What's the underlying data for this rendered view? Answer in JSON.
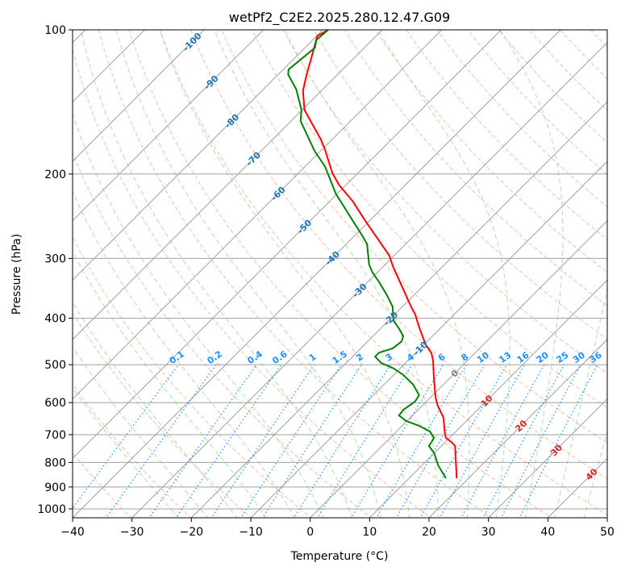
{
  "chart_data": {
    "type": "line",
    "subtype": "skew-T log-P diagram",
    "title": "wetPf2_C2E2.2025.280.12.47.G09",
    "xlabel": "Temperature (°C)",
    "ylabel": "Pressure (hPa)",
    "xlim": [
      -40,
      50
    ],
    "ylim": [
      1050,
      100
    ],
    "x_ticks": [
      -40,
      -30,
      -20,
      -10,
      0,
      10,
      20,
      30,
      40,
      50
    ],
    "y_ticks": [
      100,
      200,
      300,
      400,
      500,
      600,
      700,
      800,
      900,
      1000
    ],
    "grid": true,
    "series": [
      {
        "name": "Temperature",
        "color": "#ff0000",
        "points": [
          [
            863,
            18.0
          ],
          [
            739,
            12.3
          ],
          [
            725,
            11.0
          ],
          [
            711,
            9.4
          ],
          [
            684,
            7.8
          ],
          [
            645,
            5.6
          ],
          [
            609,
            2.6
          ],
          [
            586,
            0.9
          ],
          [
            536,
            -2.5
          ],
          [
            490,
            -5.8
          ],
          [
            473,
            -7.3
          ],
          [
            454,
            -9.7
          ],
          [
            425,
            -12.9
          ],
          [
            408,
            -14.8
          ],
          [
            393,
            -16.5
          ],
          [
            378,
            -18.6
          ],
          [
            311,
            -28.5
          ],
          [
            296,
            -30.8
          ],
          [
            250,
            -40.8
          ],
          [
            228,
            -46.1
          ],
          [
            211,
            -51.1
          ],
          [
            199,
            -54.3
          ],
          [
            177,
            -59.7
          ],
          [
            169,
            -62.0
          ],
          [
            147,
            -69.6
          ],
          [
            134,
            -73.1
          ],
          [
            124,
            -75.2
          ],
          [
            114,
            -77.3
          ],
          [
            108,
            -78.7
          ],
          [
            103,
            -79.9
          ],
          [
            100,
            -79.1
          ]
        ]
      },
      {
        "name": "Dewpoint",
        "color": "#008000",
        "points": [
          [
            863,
            16.2
          ],
          [
            811,
            12.7
          ],
          [
            765,
            10.0
          ],
          [
            739,
            7.9
          ],
          [
            711,
            7.4
          ],
          [
            689,
            5.6
          ],
          [
            671,
            2.9
          ],
          [
            655,
            -0.2
          ],
          [
            638,
            -2.3
          ],
          [
            621,
            -2.5
          ],
          [
            597,
            -1.9
          ],
          [
            579,
            -2.3
          ],
          [
            550,
            -5.1
          ],
          [
            525,
            -8.4
          ],
          [
            509,
            -11.1
          ],
          [
            496,
            -14.1
          ],
          [
            481,
            -16.2
          ],
          [
            472,
            -16.2
          ],
          [
            462,
            -14.6
          ],
          [
            447,
            -14.3
          ],
          [
            436,
            -14.9
          ],
          [
            421,
            -16.8
          ],
          [
            405,
            -19.1
          ],
          [
            378,
            -21.7
          ],
          [
            357,
            -24.7
          ],
          [
            336,
            -28.1
          ],
          [
            321,
            -30.8
          ],
          [
            309,
            -32.7
          ],
          [
            280,
            -36.5
          ],
          [
            270,
            -38.5
          ],
          [
            220,
            -50.2
          ],
          [
            193,
            -56.6
          ],
          [
            179,
            -61.0
          ],
          [
            155,
            -68.4
          ],
          [
            147,
            -70.1
          ],
          [
            133,
            -74.5
          ],
          [
            124,
            -78.3
          ],
          [
            121,
            -79.1
          ],
          [
            109,
            -78.3
          ],
          [
            105,
            -79.4
          ],
          [
            100,
            -79.1
          ]
        ]
      }
    ],
    "isotherm_labels": [
      {
        "text": "-100",
        "value": -100,
        "color": "#1f77b4"
      },
      {
        "text": "-90",
        "value": -90,
        "color": "#1f77b4"
      },
      {
        "text": "-80",
        "value": -80,
        "color": "#1f77b4"
      },
      {
        "text": "-70",
        "value": -70,
        "color": "#1f77b4"
      },
      {
        "text": "-60",
        "value": -60,
        "color": "#1f77b4"
      },
      {
        "text": "-50",
        "value": -50,
        "color": "#1f77b4"
      },
      {
        "text": "-40",
        "value": -40,
        "color": "#1f77b4"
      },
      {
        "text": "-30",
        "value": -30,
        "color": "#1f77b4"
      },
      {
        "text": "-20",
        "value": -20,
        "color": "#1f77b4"
      },
      {
        "text": "-10",
        "value": -10,
        "color": "#1f77b4"
      },
      {
        "text": "0",
        "value": 0,
        "color": "#808080"
      },
      {
        "text": "10",
        "value": 10,
        "color": "#d62728"
      },
      {
        "text": "20",
        "value": 20,
        "color": "#d62728"
      },
      {
        "text": "30",
        "value": 30,
        "color": "#d62728"
      },
      {
        "text": "40",
        "value": 40,
        "color": "#d62728"
      }
    ],
    "mixing_ratio_labels": [
      "0.1",
      "0.2",
      "0.4",
      "0.6",
      "1",
      "1.5",
      "2",
      "3",
      "4",
      "6",
      "8",
      "10",
      "13",
      "16",
      "20",
      "25",
      "30",
      "36"
    ],
    "colors": {
      "isotherm": "#a0a0a0",
      "dry_adiabat": "#f4a582",
      "moist_adiabat": "#9fd49f",
      "mixing_ratio": "#1e90ff"
    }
  }
}
